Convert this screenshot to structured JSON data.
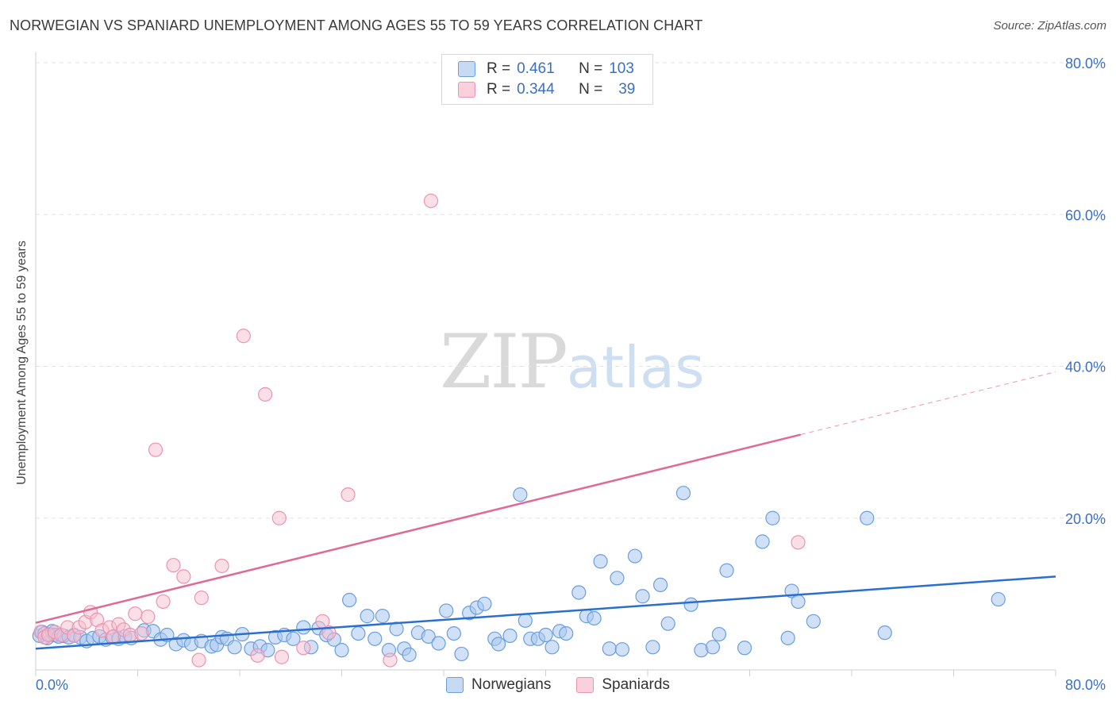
{
  "header": {
    "title": "NORWEGIAN VS SPANIARD UNEMPLOYMENT AMONG AGES 55 TO 59 YEARS CORRELATION CHART",
    "source": "Source: ZipAtlas.com"
  },
  "watermark": {
    "zip": "ZIP",
    "atlas": "atlas"
  },
  "legend": {
    "rows": [
      {
        "r_label": "R =",
        "r_value": "0.461",
        "n_label": "N =",
        "n_value": "103"
      },
      {
        "r_label": "R =",
        "r_value": "0.344",
        "n_label": "N =",
        "n_value": "39"
      }
    ]
  },
  "colors": {
    "norwegians_fill": "#aac8f0",
    "norwegians_stroke": "#6a9ee0",
    "norwegians_line": "#2a6fcf",
    "spaniards_fill": "#f7bfd0",
    "spaniards_stroke": "#ec93b0",
    "spaniards_line": "#e06a96",
    "tick_label": "#3a6fc8",
    "grid": "#e2e2e2"
  },
  "chart_data": {
    "type": "scatter",
    "title": "NORWEGIAN VS SPANIARD UNEMPLOYMENT AMONG AGES 55 TO 59 YEARS CORRELATION CHART",
    "xlabel": "",
    "ylabel": "Unemployment Among Ages 55 to 59 years",
    "xlim": [
      0,
      80
    ],
    "ylim": [
      0,
      80
    ],
    "x_ticks": [
      "0.0%",
      "80.0%"
    ],
    "y_ticks": [
      "20.0%",
      "40.0%",
      "60.0%",
      "80.0%"
    ],
    "grid": true,
    "legend_position": "bottom",
    "series": [
      {
        "name": "Norwegians",
        "r": 0.461,
        "n": 103,
        "trend": {
          "x0": 0,
          "y0": 2.8,
          "x1": 80,
          "y1": 12.3
        },
        "points": [
          [
            0.3,
            4.5
          ],
          [
            0.5,
            5.0
          ],
          [
            0.7,
            4.8
          ],
          [
            0.9,
            4.2
          ],
          [
            1.1,
            4.7
          ],
          [
            1.3,
            5.1
          ],
          [
            1.5,
            4.6
          ],
          [
            1.8,
            4.4
          ],
          [
            2.2,
            4.5
          ],
          [
            2.6,
            4.3
          ],
          [
            3.0,
            4.6
          ],
          [
            3.5,
            4.3
          ],
          [
            4.0,
            3.8
          ],
          [
            4.5,
            4.2
          ],
          [
            5.0,
            4.4
          ],
          [
            5.5,
            4.0
          ],
          [
            6.0,
            4.3
          ],
          [
            6.5,
            4.1
          ],
          [
            7.0,
            4.4
          ],
          [
            7.5,
            4.2
          ],
          [
            8.5,
            5.2
          ],
          [
            9.2,
            5.1
          ],
          [
            9.8,
            4.0
          ],
          [
            10.3,
            4.6
          ],
          [
            11.0,
            3.4
          ],
          [
            11.6,
            3.9
          ],
          [
            12.2,
            3.4
          ],
          [
            13.0,
            3.8
          ],
          [
            13.8,
            3.1
          ],
          [
            14.2,
            3.3
          ],
          [
            14.6,
            4.3
          ],
          [
            15.0,
            4.1
          ],
          [
            15.6,
            3.0
          ],
          [
            16.2,
            4.7
          ],
          [
            16.9,
            2.8
          ],
          [
            17.6,
            3.1
          ],
          [
            18.2,
            2.6
          ],
          [
            18.8,
            4.3
          ],
          [
            19.5,
            4.6
          ],
          [
            20.2,
            4.1
          ],
          [
            21.0,
            5.6
          ],
          [
            21.6,
            3.0
          ],
          [
            22.2,
            5.5
          ],
          [
            22.8,
            4.6
          ],
          [
            23.4,
            4.0
          ],
          [
            24.0,
            2.6
          ],
          [
            24.6,
            9.2
          ],
          [
            25.3,
            4.8
          ],
          [
            26.0,
            7.1
          ],
          [
            26.6,
            4.1
          ],
          [
            27.2,
            7.1
          ],
          [
            27.7,
            2.6
          ],
          [
            28.3,
            5.4
          ],
          [
            28.9,
            2.8
          ],
          [
            29.3,
            2.0
          ],
          [
            30.0,
            4.9
          ],
          [
            30.8,
            4.4
          ],
          [
            31.6,
            3.5
          ],
          [
            32.2,
            7.8
          ],
          [
            32.8,
            4.8
          ],
          [
            33.4,
            2.1
          ],
          [
            34.0,
            7.5
          ],
          [
            34.6,
            8.2
          ],
          [
            35.2,
            8.7
          ],
          [
            36.0,
            4.1
          ],
          [
            36.3,
            3.4
          ],
          [
            37.2,
            4.5
          ],
          [
            38.0,
            23.1
          ],
          [
            38.4,
            6.5
          ],
          [
            38.8,
            4.1
          ],
          [
            39.4,
            4.1
          ],
          [
            40.0,
            4.6
          ],
          [
            40.5,
            3.0
          ],
          [
            41.1,
            5.1
          ],
          [
            41.6,
            4.8
          ],
          [
            42.6,
            10.2
          ],
          [
            43.2,
            7.1
          ],
          [
            43.8,
            6.8
          ],
          [
            44.3,
            14.3
          ],
          [
            45.0,
            2.8
          ],
          [
            45.6,
            12.1
          ],
          [
            46.0,
            2.7
          ],
          [
            47.0,
            15.0
          ],
          [
            47.6,
            9.7
          ],
          [
            48.4,
            3.0
          ],
          [
            49.0,
            11.2
          ],
          [
            49.6,
            6.1
          ],
          [
            50.8,
            23.3
          ],
          [
            51.4,
            8.6
          ],
          [
            52.2,
            2.6
          ],
          [
            53.1,
            3.0
          ],
          [
            53.6,
            4.7
          ],
          [
            54.2,
            13.1
          ],
          [
            55.6,
            2.9
          ],
          [
            57.0,
            16.9
          ],
          [
            57.8,
            20.0
          ],
          [
            59.0,
            4.2
          ],
          [
            59.3,
            10.4
          ],
          [
            59.8,
            9.0
          ],
          [
            61.0,
            6.4
          ],
          [
            65.2,
            20.0
          ],
          [
            66.6,
            4.9
          ],
          [
            75.5,
            9.3
          ]
        ]
      },
      {
        "name": "Spaniards",
        "r": 0.344,
        "n": 39,
        "trend": {
          "x0": 0,
          "y0": 6.2,
          "x1": 60,
          "y1": 31.0
        },
        "points": [
          [
            0.4,
            5.0
          ],
          [
            0.7,
            4.3
          ],
          [
            1.0,
            4.6
          ],
          [
            1.5,
            5.0
          ],
          [
            2.0,
            4.6
          ],
          [
            2.5,
            5.6
          ],
          [
            3.0,
            4.5
          ],
          [
            3.4,
            5.6
          ],
          [
            3.9,
            6.3
          ],
          [
            4.3,
            7.6
          ],
          [
            4.8,
            6.6
          ],
          [
            5.2,
            5.2
          ],
          [
            5.8,
            5.6
          ],
          [
            6.1,
            4.4
          ],
          [
            6.5,
            6.0
          ],
          [
            6.9,
            5.3
          ],
          [
            7.4,
            4.6
          ],
          [
            7.8,
            7.4
          ],
          [
            8.3,
            4.8
          ],
          [
            8.8,
            7.0
          ],
          [
            9.4,
            29.0
          ],
          [
            10.0,
            9.0
          ],
          [
            10.8,
            13.8
          ],
          [
            11.6,
            12.3
          ],
          [
            12.8,
            1.3
          ],
          [
            13.0,
            9.5
          ],
          [
            14.6,
            13.7
          ],
          [
            16.3,
            44.0
          ],
          [
            17.4,
            1.9
          ],
          [
            18.0,
            36.3
          ],
          [
            19.1,
            20.0
          ],
          [
            19.3,
            1.7
          ],
          [
            21.0,
            2.9
          ],
          [
            22.5,
            6.4
          ],
          [
            23.0,
            4.9
          ],
          [
            24.5,
            23.1
          ],
          [
            27.8,
            1.3
          ],
          [
            31.0,
            61.8
          ],
          [
            59.8,
            16.8
          ]
        ]
      }
    ]
  }
}
